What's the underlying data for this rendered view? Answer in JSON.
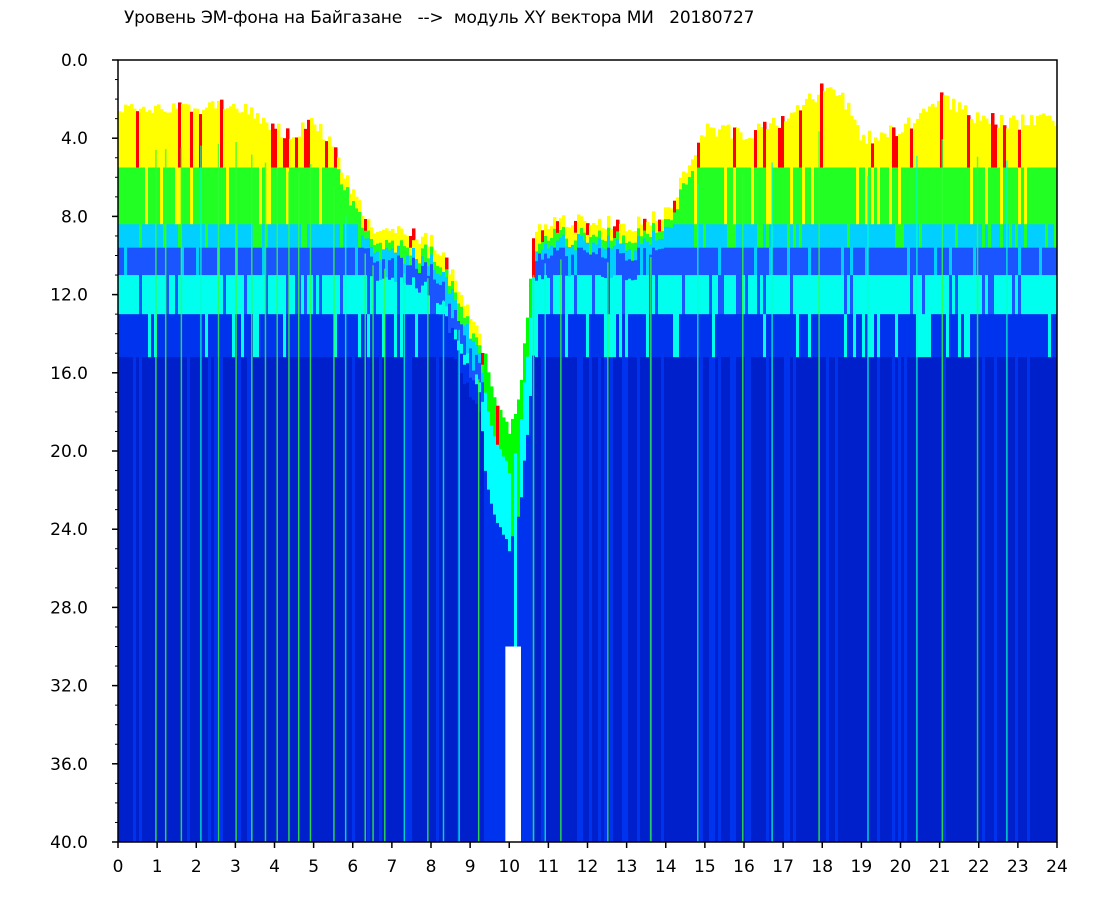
{
  "title": "Уровень ЭМ-фона на Байгазане   -->  модуль XY вектора МИ   20180727",
  "chart_data": {
    "type": "heatmap",
    "title": "Уровень ЭМ-фона на Байгазане   -->  модуль XY вектора МИ   20180727",
    "xlabel": "",
    "ylabel": "",
    "x_ticks": [
      "0",
      "1",
      "2",
      "3",
      "4",
      "5",
      "6",
      "7",
      "8",
      "9",
      "10",
      "11",
      "12",
      "13",
      "14",
      "15",
      "16",
      "17",
      "18",
      "19",
      "20",
      "21",
      "22",
      "23",
      "24"
    ],
    "y_ticks": [
      "0.0",
      "4.0",
      "8.0",
      "12.0",
      "16.0",
      "20.0",
      "24.0",
      "28.0",
      "32.0",
      "36.0",
      "40.0"
    ],
    "xlim": [
      0,
      24
    ],
    "ylim": [
      0,
      40
    ],
    "y_inverted": true,
    "colormap": [
      "#ffffff",
      "#ff0000",
      "#ffff00",
      "#00ff00",
      "#00ffff",
      "#0044ff",
      "#0000cc"
    ],
    "background": "#ffffff",
    "noise_top_profile": [
      [
        0,
        2.5
      ],
      [
        1,
        2.6
      ],
      [
        2,
        2.4
      ],
      [
        3,
        2.2
      ],
      [
        3.5,
        3.0
      ],
      [
        4,
        3.5
      ],
      [
        4.5,
        3.8
      ],
      [
        5,
        3.2
      ],
      [
        5.5,
        4.5
      ],
      [
        6,
        7.0
      ],
      [
        6.5,
        8.5
      ],
      [
        7,
        8.8
      ],
      [
        7.5,
        9.0
      ],
      [
        8,
        9.2
      ],
      [
        8.5,
        11.0
      ],
      [
        9,
        13.0
      ],
      [
        9.3,
        15.0
      ],
      [
        9.7,
        18.0
      ],
      [
        10,
        19.0
      ],
      [
        10.3,
        16.0
      ],
      [
        10.6,
        9.0
      ],
      [
        11,
        8.2
      ],
      [
        12,
        8.2
      ],
      [
        13,
        8.5
      ],
      [
        14,
        7.8
      ],
      [
        15,
        3.5
      ],
      [
        16,
        3.8
      ],
      [
        17,
        3.0
      ],
      [
        18,
        1.5
      ],
      [
        18.6,
        2.2
      ],
      [
        19,
        4.0
      ],
      [
        20,
        3.5
      ],
      [
        21,
        2.0
      ],
      [
        22,
        3.0
      ],
      [
        23,
        3.2
      ],
      [
        24,
        3.0
      ]
    ],
    "vertical_streaks_hours": [
      0.95,
      1.2,
      1.6,
      2.1,
      2.55,
      3.0,
      3.4,
      3.75,
      4.05,
      4.35,
      4.6,
      4.9,
      5.5,
      5.8,
      6.3,
      6.5,
      6.8,
      7.3,
      7.9,
      8.3,
      8.7,
      9.2,
      10.6,
      10.9,
      11.3,
      12.5,
      13.6,
      14.8,
      15.95,
      16.7,
      17.9,
      19.15,
      20.4,
      21.05,
      21.95,
      22.7
    ]
  }
}
